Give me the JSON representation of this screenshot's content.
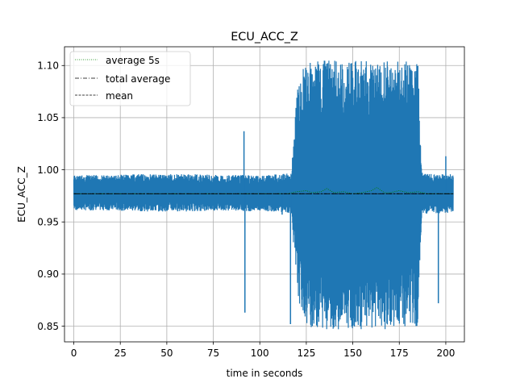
{
  "chart_data": {
    "type": "line",
    "title": "ECU_ACC_Z",
    "xlabel": "time in seconds",
    "ylabel": "ECU_ACC_Z",
    "xlim": [
      -5,
      210
    ],
    "ylim": [
      0.835,
      1.118
    ],
    "xticks": [
      0,
      25,
      50,
      75,
      100,
      125,
      150,
      175,
      200
    ],
    "yticks": [
      0.85,
      0.9,
      0.95,
      1.0,
      1.05,
      1.1
    ],
    "xtick_labels": [
      "0",
      "25",
      "50",
      "75",
      "100",
      "125",
      "150",
      "175",
      "200"
    ],
    "ytick_labels": [
      "0.85",
      "0.90",
      "0.95",
      "1.00",
      "1.05",
      "1.10"
    ],
    "grid": true,
    "legend_position": "top-left",
    "colors": {
      "signal": "#1f77b4",
      "average_5s": "#008000",
      "total_average": "#000000",
      "mean": "#000000"
    },
    "signal_envelope": {
      "x": [
        0,
        20,
        40,
        60,
        80,
        100,
        110,
        117,
        120,
        125,
        130,
        140,
        150,
        160,
        170,
        180,
        185,
        187,
        190,
        200,
        204
      ],
      "upper": [
        0.995,
        0.995,
        0.996,
        0.996,
        0.995,
        0.995,
        0.996,
        0.997,
        1.08,
        1.105,
        1.105,
        1.105,
        1.105,
        1.105,
        1.105,
        1.105,
        1.105,
        0.998,
        0.996,
        0.996,
        0.996
      ],
      "lower": [
        0.961,
        0.961,
        0.96,
        0.96,
        0.961,
        0.96,
        0.96,
        0.958,
        0.88,
        0.85,
        0.847,
        0.847,
        0.847,
        0.847,
        0.847,
        0.847,
        0.85,
        0.955,
        0.958,
        0.958,
        0.958
      ]
    },
    "spikes": [
      {
        "x": 92,
        "y": 0.863
      },
      {
        "x": 91.5,
        "y": 1.037
      },
      {
        "x": 105,
        "y": 0.972
      },
      {
        "x": 112,
        "y": 0.957
      },
      {
        "x": 116.5,
        "y": 0.852
      },
      {
        "x": 196,
        "y": 0.872
      },
      {
        "x": 200,
        "y": 1.013
      }
    ],
    "series": [
      {
        "name": "average 5s",
        "style": "dotted",
        "x": [
          0,
          20,
          40,
          60,
          80,
          100,
          115,
          120,
          125,
          128,
          133,
          136,
          140,
          145,
          150,
          155,
          160,
          163,
          167,
          170,
          175,
          180,
          185,
          190,
          200,
          204
        ],
        "values": [
          0.977,
          0.977,
          0.977,
          0.977,
          0.977,
          0.977,
          0.977,
          0.979,
          0.98,
          0.978,
          0.979,
          0.982,
          0.978,
          0.979,
          0.977,
          0.978,
          0.98,
          0.983,
          0.978,
          0.978,
          0.98,
          0.978,
          0.979,
          0.977,
          0.977,
          0.977
        ]
      },
      {
        "name": "total average",
        "style": "dashdot",
        "x": [
          0,
          204
        ],
        "values": [
          0.977,
          0.977
        ]
      },
      {
        "name": "mean",
        "style": "dashed",
        "x": [
          0,
          204
        ],
        "values": [
          0.977,
          0.977
        ]
      }
    ]
  }
}
